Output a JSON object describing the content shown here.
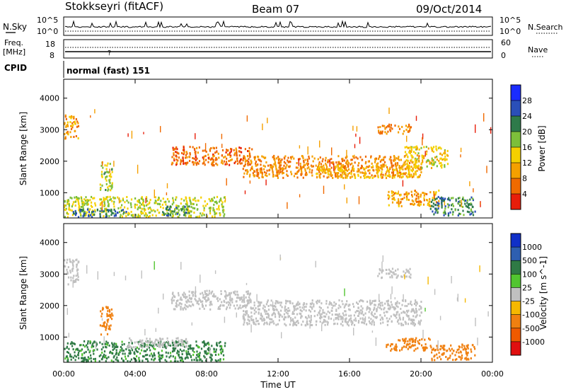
{
  "header": {
    "station": "Stokkseyri (fitACF)",
    "beam": "Beam 07",
    "date": "09/Oct/2014"
  },
  "top_panels": {
    "nsky_label": "N.Sky",
    "nsearch_label": "N.Search",
    "noise_ticks_left": [
      "10^5",
      "10^0"
    ],
    "noise_ticks_right": [
      "10^5",
      "10^0"
    ],
    "freq_label_1": "Freq.",
    "freq_label_2": "[MHz]",
    "freq_ticks": [
      "18",
      "8"
    ],
    "nave_label": "Nave",
    "nave_ticks": [
      "60",
      "0"
    ],
    "cpid_label": "CPID",
    "cpid_text": "normal (fast) 151"
  },
  "colors": {
    "power_scale": [
      "#1a2cff",
      "#2a4fb8",
      "#2e7a4a",
      "#7dbf3a",
      "#f5d000",
      "#f5a000",
      "#f06a00",
      "#e81e0a"
    ],
    "velocity_scale": [
      "#1030c8",
      "#2e5fb0",
      "#2f7a45",
      "#52c530",
      "#c0c0c0",
      "#f5b800",
      "#f08010",
      "#ef5a00",
      "#e01010"
    ]
  },
  "chart_data": [
    {
      "type": "heatmap",
      "title": "",
      "xlabel": "",
      "ylabel": "Slant Range [km]",
      "colorbar_label": "Power [dB]",
      "colorbar_ticks": [
        "28",
        "24",
        "20",
        "16",
        "12",
        "8",
        "4"
      ],
      "xlim_hours": [
        0,
        24
      ],
      "ylim": [
        200,
        4600
      ],
      "yticks": [
        "4000",
        "3000",
        "2000",
        "1000"
      ],
      "regions": [
        {
          "t0": 0.0,
          "t1": 0.8,
          "r0": 2700,
          "r1": 3500,
          "value": 10
        },
        {
          "t0": 0.0,
          "t1": 9.0,
          "r0": 250,
          "r1": 900,
          "value": 16
        },
        {
          "t0": 0.5,
          "t1": 3.5,
          "r0": 250,
          "r1": 500,
          "value": 24
        },
        {
          "t0": 5.5,
          "t1": 7.0,
          "r0": 300,
          "r1": 600,
          "value": 22
        },
        {
          "t0": 2.0,
          "t1": 2.7,
          "r0": 1100,
          "r1": 2000,
          "value": 17
        },
        {
          "t0": 6.0,
          "t1": 10.5,
          "r0": 1900,
          "r1": 2500,
          "value": 6
        },
        {
          "t0": 10.0,
          "t1": 20.0,
          "r0": 1500,
          "r1": 2200,
          "value": 8
        },
        {
          "t0": 14.0,
          "t1": 20.0,
          "r0": 1500,
          "r1": 1900,
          "value": 12
        },
        {
          "t0": 17.5,
          "t1": 19.5,
          "r0": 2900,
          "r1": 3200,
          "value": 8
        },
        {
          "t0": 18.0,
          "t1": 21.0,
          "r0": 600,
          "r1": 1100,
          "value": 10
        },
        {
          "t0": 20.5,
          "t1": 23.0,
          "r0": 300,
          "r1": 900,
          "value": 22
        },
        {
          "t0": 19.0,
          "t1": 21.5,
          "r0": 1800,
          "r1": 2500,
          "value": 14
        }
      ]
    },
    {
      "type": "heatmap",
      "title": "",
      "xlabel": "Time UT",
      "ylabel": "Slant Range [km]",
      "colorbar_label": "Velocity [m s^-1]",
      "colorbar_ticks": [
        "1000",
        "500",
        "100",
        "25",
        "-25",
        "-100",
        "-500",
        "-1000"
      ],
      "xlim_hours": [
        0,
        24
      ],
      "ylim": [
        200,
        4600
      ],
      "xticks": [
        "00:00",
        "04:00",
        "08:00",
        "12:00",
        "16:00",
        "20:00",
        "00:00"
      ],
      "yticks": [
        "4000",
        "3000",
        "2000",
        "1000"
      ],
      "regions": [
        {
          "t0": 0.0,
          "t1": 0.8,
          "r0": 2700,
          "r1": 3500,
          "value": 0
        },
        {
          "t0": 0.0,
          "t1": 9.0,
          "r0": 250,
          "r1": 900,
          "value": 150
        },
        {
          "t0": 2.0,
          "t1": 2.7,
          "r0": 1100,
          "r1": 2000,
          "value": -300
        },
        {
          "t0": 3.5,
          "t1": 7.0,
          "r0": 700,
          "r1": 1000,
          "value": 0
        },
        {
          "t0": 6.0,
          "t1": 10.5,
          "r0": 1900,
          "r1": 2500,
          "value": 0
        },
        {
          "t0": 10.0,
          "t1": 20.0,
          "r0": 1400,
          "r1": 2200,
          "value": 0
        },
        {
          "t0": 17.5,
          "t1": 19.5,
          "r0": 2900,
          "r1": 3200,
          "value": 0
        },
        {
          "t0": 18.0,
          "t1": 20.5,
          "r0": 600,
          "r1": 1000,
          "value": -300
        },
        {
          "t0": 20.5,
          "t1": 23.0,
          "r0": 300,
          "r1": 800,
          "value": -200
        }
      ]
    }
  ]
}
